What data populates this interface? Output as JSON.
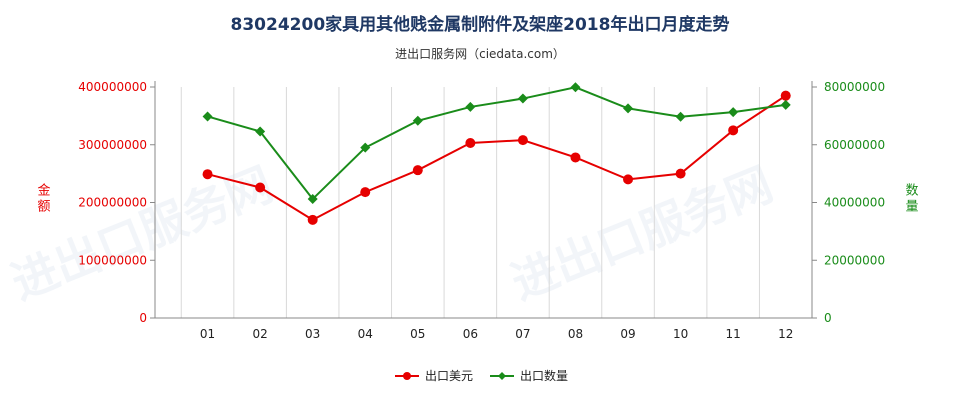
{
  "chart_data": {
    "type": "line",
    "title": "83024200家具用其他贱金属制附件及架座2018年出口月度走势",
    "subtitle": "进出口服务网（ciedata.com）",
    "categories": [
      "01",
      "02",
      "03",
      "04",
      "05",
      "06",
      "07",
      "08",
      "09",
      "10",
      "11",
      "12"
    ],
    "y_left": {
      "label": "金额",
      "lim": [
        0,
        400000000
      ],
      "ticks": [
        0,
        100000000,
        200000000,
        300000000,
        400000000
      ],
      "tick_labels": [
        "0",
        "100000000",
        "200000000",
        "300000000",
        "400000000"
      ],
      "color": "#e60000"
    },
    "y_right": {
      "label": "数量",
      "lim": [
        0,
        80000000
      ],
      "ticks": [
        0,
        20000000,
        40000000,
        60000000,
        80000000
      ],
      "tick_labels": [
        "0",
        "20000000",
        "40000000",
        "60000000",
        "80000000"
      ],
      "color": "#1a8c1a"
    },
    "series": [
      {
        "name": "出口美元",
        "axis": "left",
        "color": "#e60000",
        "marker": "circle",
        "values": [
          249000000,
          226000000,
          170000000,
          218000000,
          256000000,
          303000000,
          308000000,
          278000000,
          240000000,
          250000000,
          325000000,
          385000000
        ]
      },
      {
        "name": "出口数量",
        "axis": "right",
        "color": "#1a8c1a",
        "marker": "diamond",
        "values": [
          69800000,
          64600000,
          41200000,
          59000000,
          68300000,
          73100000,
          76000000,
          79900000,
          72600000,
          69700000,
          71300000,
          73800000
        ]
      }
    ],
    "legend_position": "bottom-center",
    "grid": "vertical"
  }
}
